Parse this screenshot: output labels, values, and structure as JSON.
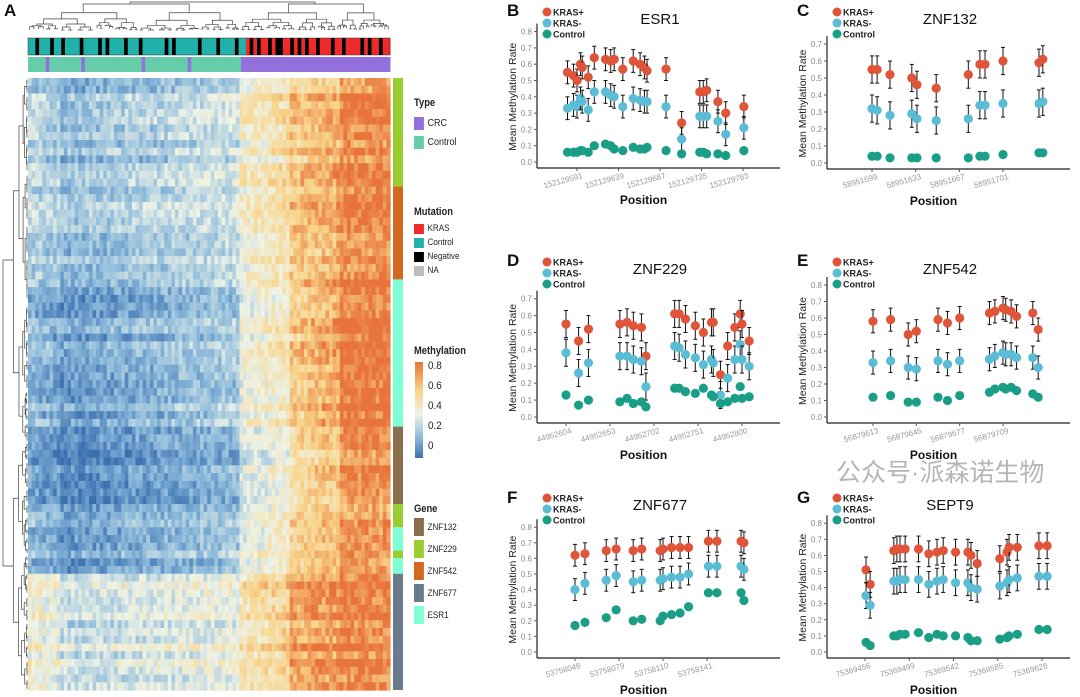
{
  "panel_labels": [
    "A",
    "B",
    "C",
    "D",
    "E",
    "F",
    "G"
  ],
  "colors": {
    "kras_pos": "#e0553a",
    "kras_neg": "#5bbcd6",
    "control": "#1a9e86",
    "crc": "#9370db",
    "type_control": "#66cdaa",
    "mut_kras": "#ee2a2a",
    "mut_control": "#20b2aa",
    "mut_negative": "#000000",
    "mut_na": "#bdbdbd",
    "gene_ZNF132": "#8b6e4e",
    "gene_ZNF229": "#9acd32",
    "gene_ZNF542": "#d2691e",
    "gene_ZNF677": "#6b7b8c",
    "gene_ESR1": "#7fffd4"
  },
  "heatmap_legend": {
    "type_title": "Type",
    "type_items": [
      "CRC",
      "Control"
    ],
    "mutation_title": "Mutation",
    "mutation_items": [
      "KRAS",
      "Control",
      "Negative",
      "NA"
    ],
    "methylation_title": "Methylation",
    "methylation_ticks": [
      "0.8",
      "0.6",
      "0.4",
      "0.2",
      "0"
    ],
    "gene_title": "Gene",
    "gene_items": [
      "ZNF132",
      "ZNF229",
      "ZNF542",
      "ZNF677",
      "ESR1"
    ]
  },
  "watermark": "公众号·派森诺生物",
  "chart_data": [
    {
      "type": "heatmap",
      "panel": "A",
      "color_scale": {
        "min": 0,
        "max": 0.8,
        "colors": [
          "#3a6fb0",
          "#8fbcdc",
          "#eef3e6",
          "#f8d48a",
          "#e8743b"
        ]
      },
      "col_groups": [
        {
          "type": "Control",
          "cols": 9
        },
        {
          "type": "Control",
          "cols": 50
        },
        {
          "type": "CRC",
          "cols": 14
        },
        {
          "type": "CRC",
          "cols": 14
        },
        {
          "type": "CRC",
          "cols": 14
        }
      ],
      "row_groups": [
        {
          "gene": "ZNF229",
          "rows": 14,
          "means": [
            0.3,
            0.2,
            0.45,
            0.6,
            0.75
          ]
        },
        {
          "gene": "ZNF542",
          "rows": 12,
          "means": [
            0.3,
            0.22,
            0.45,
            0.62,
            0.76
          ]
        },
        {
          "gene": "ESR1",
          "rows": 19,
          "means": [
            0.2,
            0.12,
            0.4,
            0.6,
            0.8
          ]
        },
        {
          "gene": "ZNF132",
          "rows": 10,
          "means": [
            0.15,
            0.06,
            0.35,
            0.55,
            0.75
          ]
        },
        {
          "gene": "ZNF229",
          "rows": 3,
          "means": [
            0.25,
            0.15,
            0.4,
            0.6,
            0.72
          ]
        },
        {
          "gene": "ESR1",
          "rows": 3,
          "means": [
            0.2,
            0.12,
            0.4,
            0.6,
            0.75
          ]
        },
        {
          "gene": "ZNF229",
          "rows": 1,
          "means": [
            0.25,
            0.15,
            0.4,
            0.6,
            0.72
          ]
        },
        {
          "gene": "ESR1",
          "rows": 2,
          "means": [
            0.2,
            0.12,
            0.4,
            0.6,
            0.75
          ]
        },
        {
          "gene": "ZNF677",
          "rows": 15,
          "means": [
            0.45,
            0.32,
            0.5,
            0.7,
            0.76
          ]
        }
      ],
      "type_track": "CCCCCPCCCCCCCCCPCCCCCCCCCCCCCCCCPCCCCCCCCCCCCPCCCCCCCCCCCCCCPPPPPPPPPPPPPPPPPPPPPPPPPPPPPPPPPPPPPPPPPP",
      "mutation_track": "TTNTTTNTTNTTTTNTTTTNTNTTTTNTTTNTTTTTTNTNTTTTTTNTTTTNTTTTNTTKNKNKKNKNNKKNKNKNKKNKKKNKKNKKKKNKNKKNKK"
    },
    {
      "type": "scatter",
      "panel": "B",
      "title": "ESR1",
      "xlabel": "Position",
      "ylabel": "Mean Methylation Rate",
      "legend": [
        "KRAS+",
        "KRAS-",
        "Control"
      ],
      "legend_position": "top-left",
      "ylim": [
        0,
        0.8
      ],
      "yticks": [
        "0.0",
        "0.1",
        "0.2",
        "0.3",
        "0.4",
        "0.5",
        "0.6",
        "0.7",
        "0.8"
      ],
      "xticks": [
        152129591,
        152129639,
        152129687,
        152129735,
        152129783
      ],
      "error": 0.07,
      "x": [
        152129580,
        152129587,
        152129591,
        152129595,
        152129597,
        152129604,
        152129611,
        152129624,
        152129630,
        152129634,
        152129644,
        152129656,
        152129664,
        152129669,
        152129672,
        152129694,
        152129712,
        152129733,
        152129737,
        152129741,
        152129754,
        152129763,
        152129784
      ],
      "series": [
        {
          "name": "KRAS+",
          "values": [
            0.55,
            0.53,
            0.5,
            0.6,
            0.58,
            0.52,
            0.64,
            0.63,
            0.62,
            0.63,
            0.57,
            0.62,
            0.6,
            0.58,
            0.56,
            0.57,
            0.24,
            0.43,
            0.43,
            0.44,
            0.37,
            0.3,
            0.34
          ]
        },
        {
          "name": "KRAS-",
          "values": [
            0.33,
            0.35,
            0.34,
            0.39,
            0.37,
            0.32,
            0.43,
            0.43,
            0.41,
            0.4,
            0.34,
            0.39,
            0.38,
            0.37,
            0.37,
            0.34,
            0.14,
            0.28,
            0.28,
            0.28,
            0.25,
            0.17,
            0.21
          ]
        },
        {
          "name": "Control",
          "values": [
            0.06,
            0.06,
            0.06,
            0.07,
            0.07,
            0.06,
            0.1,
            0.11,
            0.1,
            0.08,
            0.07,
            0.09,
            0.08,
            0.08,
            0.09,
            0.07,
            0.05,
            0.06,
            0.06,
            0.05,
            0.05,
            0.04,
            0.07
          ]
        }
      ]
    },
    {
      "type": "scatter",
      "panel": "C",
      "title": "ZNF132",
      "xlabel": "Position",
      "ylabel": "Mean Methylation Rate",
      "legend": [
        "KRAS+",
        "KRAS-",
        "Control"
      ],
      "legend_position": "top-left",
      "ylim": [
        0,
        0.7
      ],
      "yticks": [
        "0.0",
        "0.1",
        "0.2",
        "0.3",
        "0.4",
        "0.5",
        "0.6",
        "0.7"
      ],
      "xticks": [
        58951599,
        58951633,
        58951667,
        58951701
      ],
      "error": 0.08,
      "x": [
        58951599,
        58951603,
        58951613,
        58951630,
        58951634,
        58951649,
        58951674,
        58951683,
        58951687,
        58951701,
        58951729,
        58951732
      ],
      "series": [
        {
          "name": "KRAS+",
          "values": [
            0.55,
            0.55,
            0.52,
            0.5,
            0.46,
            0.44,
            0.52,
            0.58,
            0.58,
            0.6,
            0.59,
            0.61
          ]
        },
        {
          "name": "KRAS-",
          "values": [
            0.32,
            0.31,
            0.28,
            0.29,
            0.26,
            0.25,
            0.26,
            0.34,
            0.34,
            0.35,
            0.35,
            0.36
          ]
        },
        {
          "name": "Control",
          "values": [
            0.04,
            0.04,
            0.03,
            0.03,
            0.03,
            0.03,
            0.03,
            0.04,
            0.04,
            0.05,
            0.06,
            0.06
          ]
        }
      ]
    },
    {
      "type": "scatter",
      "panel": "D",
      "title": "ZNF229",
      "xlabel": "Position",
      "ylabel": "Mean Methylation Rate",
      "legend": [
        "KRAS+",
        "KRAS-",
        "Control"
      ],
      "legend_position": "top-left",
      "ylim": [
        0,
        0.7
      ],
      "yticks": [
        "0.0",
        "0.1",
        "0.2",
        "0.3",
        "0.4",
        "0.5",
        "0.6",
        "0.7"
      ],
      "xticks": [
        44952604,
        44952653,
        44952702,
        44952751,
        44952800
      ],
      "error": 0.08,
      "x": [
        44952604,
        44952618,
        44952629,
        44952664,
        44952672,
        44952679,
        44952688,
        44952693,
        44952725,
        44952730,
        44952737,
        44952748,
        44952757,
        44952766,
        44952768,
        44952776,
        44952784,
        44952792,
        44952798,
        44952800,
        44952808
      ],
      "series": [
        {
          "name": "KRAS+",
          "values": [
            0.55,
            0.45,
            0.52,
            0.55,
            0.56,
            0.54,
            0.53,
            0.36,
            0.61,
            0.61,
            0.58,
            0.54,
            0.5,
            0.56,
            0.56,
            0.25,
            0.42,
            0.53,
            0.61,
            0.55,
            0.45
          ]
        },
        {
          "name": "KRAS-",
          "values": [
            0.38,
            0.26,
            0.32,
            0.36,
            0.36,
            0.34,
            0.33,
            0.18,
            0.42,
            0.41,
            0.37,
            0.35,
            0.31,
            0.34,
            0.32,
            0.13,
            0.23,
            0.34,
            0.43,
            0.34,
            0.3
          ]
        },
        {
          "name": "Control",
          "values": [
            0.13,
            0.07,
            0.1,
            0.09,
            0.11,
            0.08,
            0.09,
            0.06,
            0.17,
            0.17,
            0.15,
            0.14,
            0.17,
            0.13,
            0.12,
            0.08,
            0.09,
            0.11,
            0.18,
            0.11,
            0.12
          ]
        }
      ]
    },
    {
      "type": "scatter",
      "panel": "E",
      "title": "ZNF542",
      "xlabel": "Position",
      "ylabel": "Mean Methylation Rate",
      "legend": [
        "KRAS+",
        "KRAS-",
        "Control"
      ],
      "legend_position": "top-left",
      "ylim": [
        0,
        0.8
      ],
      "yticks": [
        "0.0",
        "0.1",
        "0.2",
        "0.3",
        "0.4",
        "0.5",
        "0.6",
        "0.7",
        "0.8"
      ],
      "xticks": [
        56879613,
        56879645,
        56879677,
        56879709
      ],
      "error": 0.07,
      "x": [
        56879613,
        56879626,
        56879639,
        56879645,
        56879661,
        56879668,
        56879677,
        56879699,
        56879703,
        56879709,
        56879711,
        56879715,
        56879719,
        56879731,
        56879735
      ],
      "series": [
        {
          "name": "KRAS+",
          "values": [
            0.58,
            0.59,
            0.5,
            0.52,
            0.59,
            0.57,
            0.6,
            0.63,
            0.64,
            0.66,
            0.65,
            0.64,
            0.61,
            0.63,
            0.53
          ]
        },
        {
          "name": "KRAS-",
          "values": [
            0.33,
            0.34,
            0.3,
            0.29,
            0.34,
            0.32,
            0.34,
            0.35,
            0.37,
            0.39,
            0.38,
            0.38,
            0.36,
            0.36,
            0.3
          ]
        },
        {
          "name": "Control",
          "values": [
            0.12,
            0.13,
            0.09,
            0.09,
            0.12,
            0.1,
            0.13,
            0.15,
            0.17,
            0.18,
            0.17,
            0.18,
            0.16,
            0.14,
            0.12
          ]
        }
      ]
    },
    {
      "type": "scatter",
      "panel": "F",
      "title": "ZNF677",
      "xlabel": "Position",
      "ylabel": "Mean Methylation Rate",
      "legend": [
        "KRAS+",
        "KRAS-",
        "Control"
      ],
      "legend_position": "top-left",
      "ylim": [
        0,
        0.8
      ],
      "yticks": [
        "0.0",
        "0.1",
        "0.2",
        "0.3",
        "0.4",
        "0.5",
        "0.6",
        "0.7",
        "0.8"
      ],
      "xticks": [
        53758048,
        53758079,
        53758110,
        53758141
      ],
      "error": 0.07,
      "x": [
        53758048,
        53758055,
        53758070,
        53758077,
        53758089,
        53758095,
        53758108,
        53758110,
        53758116,
        53758122,
        53758128,
        53758142,
        53758148,
        53758165,
        53758167
      ],
      "series": [
        {
          "name": "KRAS+",
          "values": [
            0.62,
            0.63,
            0.65,
            0.66,
            0.65,
            0.66,
            0.65,
            0.66,
            0.67,
            0.67,
            0.67,
            0.71,
            0.71,
            0.71,
            0.7
          ]
        },
        {
          "name": "KRAS-",
          "values": [
            0.4,
            0.44,
            0.46,
            0.49,
            0.45,
            0.46,
            0.46,
            0.47,
            0.48,
            0.48,
            0.5,
            0.55,
            0.55,
            0.55,
            0.53
          ]
        },
        {
          "name": "Control",
          "values": [
            0.17,
            0.19,
            0.22,
            0.27,
            0.2,
            0.21,
            0.2,
            0.23,
            0.24,
            0.25,
            0.29,
            0.38,
            0.38,
            0.38,
            0.33
          ]
        }
      ]
    },
    {
      "type": "scatter",
      "panel": "G",
      "title": "SEPT9",
      "xlabel": "Position",
      "ylabel": "Mean Methylation Rate",
      "legend": [
        "KRAS+",
        "KRAS-",
        "Control"
      ],
      "legend_position": "top-left",
      "ylim": [
        0,
        0.8
      ],
      "yticks": [
        "0.0",
        "0.1",
        "0.2",
        "0.3",
        "0.4",
        "0.5",
        "0.6",
        "0.7",
        "0.8"
      ],
      "xticks": [
        75369456,
        75369499,
        75369542,
        75369585,
        75369628
      ],
      "error": 0.08,
      "x": [
        75369457,
        75369461,
        75369484,
        75369487,
        75369490,
        75369495,
        75369508,
        75369518,
        75369526,
        75369532,
        75369544,
        75369556,
        75369559,
        75369565,
        75369587,
        75369594,
        75369596,
        75369604,
        75369625,
        75369633
      ],
      "series": [
        {
          "name": "KRAS+",
          "values": [
            0.51,
            0.42,
            0.63,
            0.64,
            0.64,
            0.64,
            0.64,
            0.61,
            0.62,
            0.63,
            0.62,
            0.62,
            0.6,
            0.55,
            0.58,
            0.62,
            0.65,
            0.65,
            0.66,
            0.66
          ]
        },
        {
          "name": "KRAS-",
          "values": [
            0.35,
            0.29,
            0.44,
            0.44,
            0.45,
            0.45,
            0.45,
            0.42,
            0.44,
            0.45,
            0.43,
            0.43,
            0.4,
            0.39,
            0.41,
            0.43,
            0.45,
            0.46,
            0.47,
            0.47
          ]
        },
        {
          "name": "Control",
          "values": [
            0.06,
            0.04,
            0.1,
            0.1,
            0.11,
            0.11,
            0.12,
            0.09,
            0.11,
            0.1,
            0.1,
            0.09,
            0.07,
            0.07,
            0.08,
            0.09,
            0.1,
            0.11,
            0.14,
            0.14
          ]
        }
      ]
    }
  ]
}
